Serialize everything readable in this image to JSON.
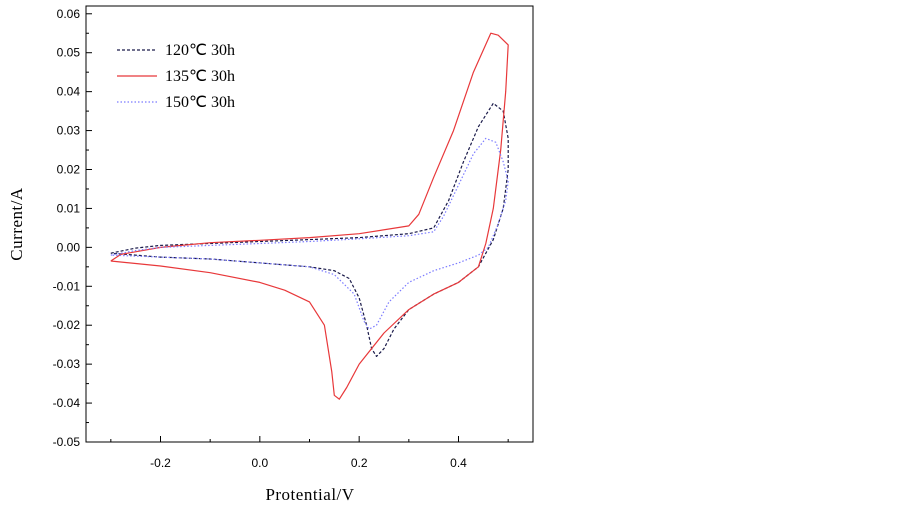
{
  "chart_data": {
    "type": "line",
    "xlabel": "Protential/V",
    "ylabel": "Current/A",
    "xlim": [
      -0.35,
      0.55
    ],
    "ylim": [
      -0.05,
      0.062
    ],
    "x_ticks": [
      -0.2,
      0.0,
      0.2,
      0.4
    ],
    "x_tick_labels": [
      "-0.2",
      "0.0",
      "0.2",
      "0.4"
    ],
    "y_ticks": [
      -0.05,
      -0.04,
      -0.03,
      -0.02,
      -0.01,
      0.0,
      0.01,
      0.02,
      0.03,
      0.04,
      0.05,
      0.06
    ],
    "y_tick_labels": [
      "-0.05",
      "-0.04",
      "-0.03",
      "-0.02",
      "-0.01",
      "0.00",
      "0.01",
      "0.02",
      "0.03",
      "0.04",
      "0.05",
      "0.06"
    ],
    "grid": false,
    "legend_position": "top-left",
    "series": [
      {
        "name": "120℃ 30h",
        "color": "#1a1a4a",
        "dash": "3,2",
        "points": [
          [
            -0.3,
            -0.0015
          ],
          [
            -0.25,
            -0.0002
          ],
          [
            -0.2,
            0.0005
          ],
          [
            -0.1,
            0.001
          ],
          [
            0.0,
            0.0015
          ],
          [
            0.1,
            0.002
          ],
          [
            0.2,
            0.0025
          ],
          [
            0.3,
            0.0035
          ],
          [
            0.35,
            0.005
          ],
          [
            0.38,
            0.012
          ],
          [
            0.41,
            0.022
          ],
          [
            0.44,
            0.031
          ],
          [
            0.47,
            0.037
          ],
          [
            0.49,
            0.035
          ],
          [
            0.5,
            0.028
          ],
          [
            0.5,
            0.02
          ],
          [
            0.49,
            0.01
          ],
          [
            0.47,
            0.002
          ],
          [
            0.44,
            -0.005
          ],
          [
            0.4,
            -0.009
          ],
          [
            0.35,
            -0.012
          ],
          [
            0.3,
            -0.016
          ],
          [
            0.27,
            -0.021
          ],
          [
            0.25,
            -0.026
          ],
          [
            0.235,
            -0.028
          ],
          [
            0.225,
            -0.026
          ],
          [
            0.215,
            -0.02
          ],
          [
            0.2,
            -0.013
          ],
          [
            0.18,
            -0.008
          ],
          [
            0.15,
            -0.006
          ],
          [
            0.1,
            -0.005
          ],
          [
            0.0,
            -0.004
          ],
          [
            -0.1,
            -0.003
          ],
          [
            -0.2,
            -0.0025
          ],
          [
            -0.3,
            -0.0015
          ]
        ]
      },
      {
        "name": "135℃ 30h",
        "color": "#e8383a",
        "dash": "",
        "points": [
          [
            -0.3,
            -0.0035
          ],
          [
            -0.28,
            -0.0018
          ],
          [
            -0.2,
            0.0
          ],
          [
            -0.1,
            0.0012
          ],
          [
            0.0,
            0.0018
          ],
          [
            0.1,
            0.0025
          ],
          [
            0.2,
            0.0035
          ],
          [
            0.3,
            0.0055
          ],
          [
            0.32,
            0.0085
          ],
          [
            0.35,
            0.018
          ],
          [
            0.39,
            0.03
          ],
          [
            0.43,
            0.045
          ],
          [
            0.465,
            0.055
          ],
          [
            0.48,
            0.0545
          ],
          [
            0.5,
            0.052
          ],
          [
            0.495,
            0.04
          ],
          [
            0.485,
            0.025
          ],
          [
            0.47,
            0.01
          ],
          [
            0.455,
            0.001
          ],
          [
            0.44,
            -0.005
          ],
          [
            0.4,
            -0.009
          ],
          [
            0.35,
            -0.012
          ],
          [
            0.3,
            -0.016
          ],
          [
            0.25,
            -0.022
          ],
          [
            0.2,
            -0.03
          ],
          [
            0.175,
            -0.036
          ],
          [
            0.16,
            -0.039
          ],
          [
            0.15,
            -0.038
          ],
          [
            0.145,
            -0.032
          ],
          [
            0.13,
            -0.02
          ],
          [
            0.1,
            -0.014
          ],
          [
            0.05,
            -0.011
          ],
          [
            0.0,
            -0.009
          ],
          [
            -0.1,
            -0.0065
          ],
          [
            -0.2,
            -0.0048
          ],
          [
            -0.3,
            -0.0035
          ]
        ]
      },
      {
        "name": "150℃ 30h",
        "color": "#7b7bff",
        "dash": "1.5,2",
        "points": [
          [
            -0.3,
            -0.002
          ],
          [
            -0.25,
            -0.0008
          ],
          [
            -0.2,
            0.0
          ],
          [
            -0.1,
            0.0005
          ],
          [
            0.0,
            0.001
          ],
          [
            0.1,
            0.0015
          ],
          [
            0.2,
            0.0022
          ],
          [
            0.3,
            0.003
          ],
          [
            0.35,
            0.004
          ],
          [
            0.37,
            0.008
          ],
          [
            0.4,
            0.016
          ],
          [
            0.43,
            0.024
          ],
          [
            0.455,
            0.028
          ],
          [
            0.475,
            0.027
          ],
          [
            0.49,
            0.022
          ],
          [
            0.5,
            0.017
          ],
          [
            0.495,
            0.012
          ],
          [
            0.48,
            0.006
          ],
          [
            0.46,
            0.0
          ],
          [
            0.44,
            -0.002
          ],
          [
            0.4,
            -0.004
          ],
          [
            0.35,
            -0.006
          ],
          [
            0.3,
            -0.009
          ],
          [
            0.26,
            -0.014
          ],
          [
            0.235,
            -0.02
          ],
          [
            0.22,
            -0.021
          ],
          [
            0.21,
            -0.019
          ],
          [
            0.19,
            -0.012
          ],
          [
            0.15,
            -0.007
          ],
          [
            0.1,
            -0.005
          ],
          [
            0.0,
            -0.004
          ],
          [
            -0.1,
            -0.003
          ],
          [
            -0.2,
            -0.0025
          ],
          [
            -0.3,
            -0.002
          ]
        ]
      }
    ]
  }
}
